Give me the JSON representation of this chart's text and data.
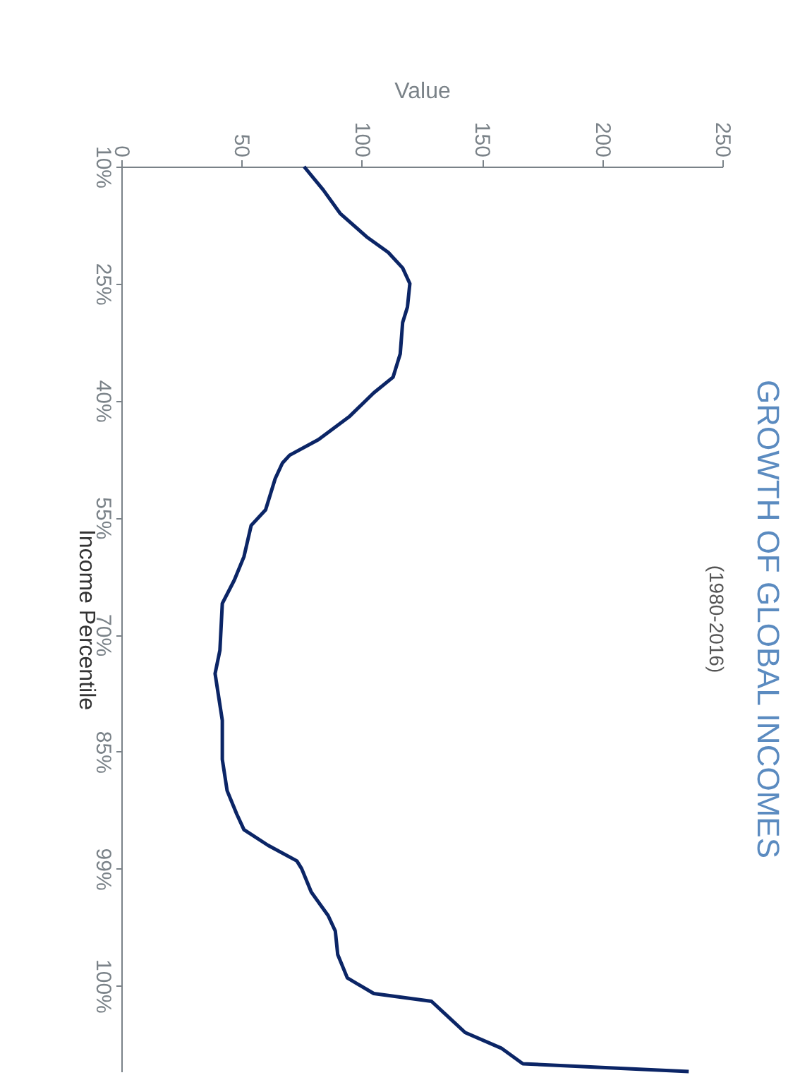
{
  "chart_data": {
    "type": "line",
    "title": "GROWTH OF GLOBAL INCOMES",
    "subtitle": "(1980-2016)",
    "xlabel": "Value",
    "ylabel": "Income Percentile",
    "orientation": "horizontal",
    "categories": [
      "10%",
      null,
      null,
      null,
      null,
      null,
      null,
      null,
      null,
      null,
      null,
      null,
      null,
      null,
      null,
      "25%",
      null,
      null,
      null,
      null,
      null,
      null,
      null,
      null,
      null,
      null,
      null,
      null,
      null,
      null,
      "40%",
      null,
      null,
      null,
      null,
      null,
      null,
      null,
      null,
      null,
      null,
      null,
      null,
      null,
      null,
      "55%",
      null,
      null,
      null,
      null,
      null,
      null,
      null,
      null,
      null,
      null,
      null,
      null,
      null,
      null,
      "70%",
      null,
      null,
      null,
      null,
      null,
      null,
      null,
      null,
      null,
      null,
      null,
      null,
      null,
      null,
      "85%",
      null,
      null,
      null,
      null,
      null,
      null,
      null,
      null,
      null,
      null,
      null,
      null,
      null,
      null,
      "99%",
      null,
      null,
      null,
      null,
      null,
      null,
      null,
      null,
      null,
      null,
      null,
      null,
      null,
      null,
      "100%",
      null,
      null,
      null,
      null,
      null,
      null,
      null,
      null,
      null,
      null,
      null
    ],
    "series": [
      {
        "color": "#0b2566",
        "values": [
          76,
          null,
          null,
          84,
          null,
          null,
          91,
          null,
          null,
          102,
          null,
          111,
          null,
          117,
          null,
          120,
          null,
          null,
          119,
          null,
          117,
          null,
          null,
          null,
          116,
          null,
          null,
          113,
          null,
          105,
          null,
          null,
          95,
          null,
          null,
          82,
          null,
          70,
          67,
          null,
          64,
          null,
          null,
          null,
          60,
          null,
          54,
          null,
          null,
          null,
          51,
          null,
          null,
          47,
          null,
          null,
          42,
          null,
          null,
          null,
          null,
          null,
          41,
          null,
          null,
          39,
          null,
          null,
          null,
          41,
          null,
          42,
          null,
          null,
          null,
          null,
          42,
          null,
          null,
          null,
          44,
          null,
          null,
          48,
          null,
          51,
          null,
          61,
          null,
          73,
          75,
          null,
          null,
          79,
          null,
          null,
          86,
          null,
          89,
          null,
          null,
          90,
          null,
          null,
          94,
          null,
          105,
          129,
          null,
          136,
          null,
          143,
          null,
          158,
          null,
          167,
          236
        ]
      }
    ],
    "xlim": [
      0,
      250
    ],
    "xticks": [
      0,
      50,
      100,
      150,
      200,
      250
    ],
    "grid": false
  }
}
